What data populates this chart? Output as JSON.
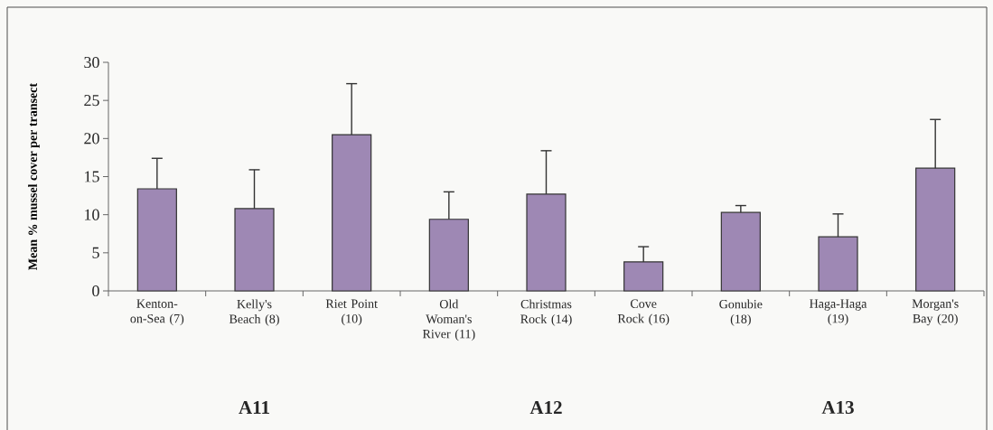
{
  "chart_data": {
    "type": "bar",
    "ylabel": "Mean % mussel cover per transect",
    "categories": [
      "Kenton-on-Sea (7)",
      "Kelly's Beach (8)",
      "Riet Point (10)",
      "Old Woman's River (11)",
      "Christmas Rock (14)",
      "Cove Rock (16)",
      "Gonubie (18)",
      "Haga-Haga (19)",
      "Morgan's Bay (20)"
    ],
    "values": [
      13.4,
      10.8,
      20.5,
      9.4,
      12.7,
      3.8,
      10.3,
      7.1,
      16.1
    ],
    "errors": [
      4.0,
      5.1,
      6.7,
      3.6,
      5.7,
      2.0,
      0.9,
      3.0,
      6.4
    ],
    "color": "#9e88b4",
    "ylim": [
      0,
      30
    ],
    "yticks": [
      0,
      5,
      10,
      15,
      20,
      25,
      30
    ],
    "grid": false,
    "annotations": [
      "A11",
      "A12",
      "A13"
    ]
  }
}
